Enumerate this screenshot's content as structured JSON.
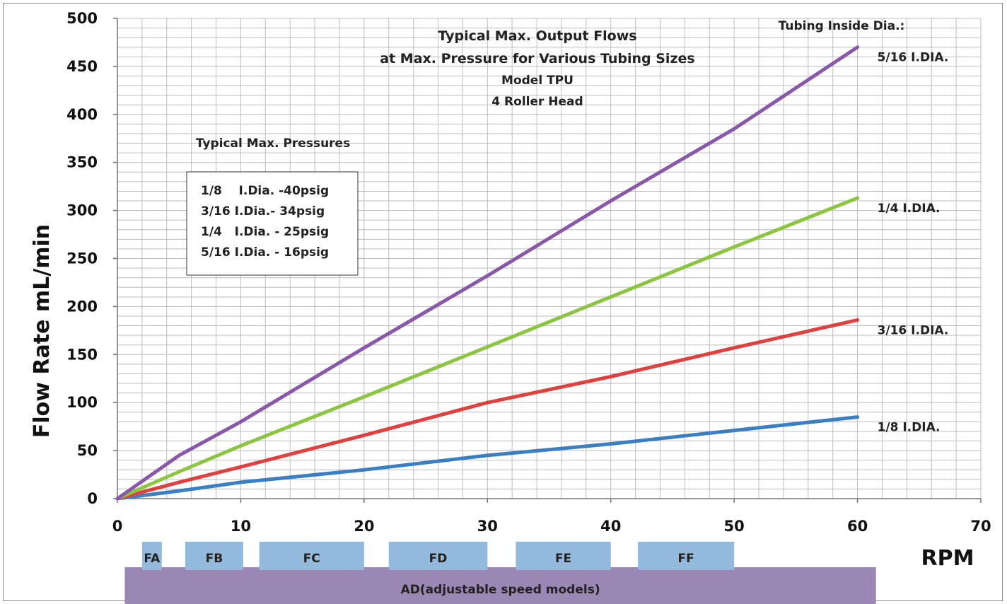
{
  "chart_data": {
    "type": "line",
    "title_lines": [
      "Typical Max. Output Flows",
      "at Max. Pressure for  Various Tubing Sizes",
      "Model TPU",
      "4 Roller Head"
    ],
    "xlabel": "RPM",
    "ylabel": "Flow Rate mL/min",
    "xlim": [
      0,
      70
    ],
    "ylim": [
      0,
      500
    ],
    "x_ticks": [
      0,
      10,
      20,
      30,
      40,
      50,
      60,
      70
    ],
    "y_ticks": [
      0,
      50,
      100,
      150,
      200,
      250,
      300,
      350,
      400,
      450,
      500
    ],
    "grid": true,
    "legend_title": "Tubing Inside Dia.:",
    "series": [
      {
        "name": "1/8 I.DIA.",
        "color": "#3a7fc4",
        "x": [
          0,
          5,
          10,
          20,
          30,
          40,
          50,
          60
        ],
        "y": [
          0,
          8,
          17,
          30,
          45,
          57,
          71,
          85
        ]
      },
      {
        "name": "3/16 I.DIA.",
        "color": "#e0403e",
        "x": [
          0,
          5,
          10,
          20,
          30,
          40,
          50,
          60
        ],
        "y": [
          0,
          17,
          33,
          66,
          100,
          127,
          157,
          186
        ]
      },
      {
        "name": "1/4 I.DIA.",
        "color": "#8cc53f",
        "x": [
          0,
          5,
          10,
          20,
          30,
          40,
          50,
          60
        ],
        "y": [
          0,
          28,
          55,
          106,
          158,
          210,
          262,
          313
        ]
      },
      {
        "name": "5/16 I.DIA.",
        "color": "#8a58a8",
        "x": [
          0,
          5,
          10,
          20,
          30,
          40,
          50,
          60
        ],
        "y": [
          0,
          45,
          80,
          157,
          232,
          310,
          385,
          470
        ]
      }
    ],
    "pressure_box": {
      "title": "Typical Max. Pressures",
      "lines": [
        "1/8    I.Dia. -40psig",
        "3/16 I.Dia.- 34psig",
        "1/4   I.Dia. - 25psig",
        "5/16 I.Dia. - 16psig"
      ]
    },
    "speed_bands": [
      {
        "label": "FA",
        "x": [
          2,
          3.6
        ]
      },
      {
        "label": "FB",
        "x": [
          5.5,
          10.2
        ]
      },
      {
        "label": "FC",
        "x": [
          11.5,
          20
        ]
      },
      {
        "label": "FD",
        "x": [
          22,
          30
        ]
      },
      {
        "label": "FE",
        "x": [
          32.3,
          40
        ]
      },
      {
        "label": "FF",
        "x": [
          42.2,
          50
        ]
      }
    ],
    "band_color": "#93b9dd",
    "ad_band": {
      "label": "AD(adjustable speed models)",
      "x": [
        0.6,
        61.5
      ],
      "color": "#9b87b4"
    }
  }
}
